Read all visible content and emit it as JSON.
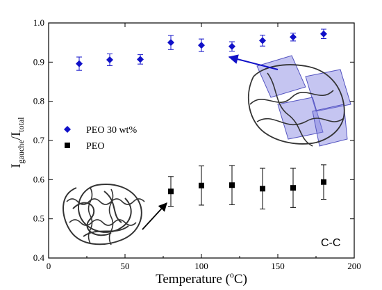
{
  "chart_data": {
    "type": "scatter",
    "xlabel": {
      "main": "Temperature (",
      "sup": "o",
      "end": "C)"
    },
    "ylabel": {
      "i1": "I",
      "sub1": "gauche",
      "slash": "/I",
      "sub2": "total"
    },
    "xlim": [
      0,
      200
    ],
    "ylim": [
      0.4,
      1.0
    ],
    "x_ticks": [
      0,
      50,
      100,
      150,
      200
    ],
    "y_ticks": [
      0.4,
      0.5,
      0.6,
      0.7,
      0.8,
      0.9,
      1.0
    ],
    "grid": false,
    "legend_position": "left",
    "annotation": "C-C",
    "series": [
      {
        "name": "PEO 30 wt%",
        "marker": "diamond",
        "color": "#1010c8",
        "x": [
          20,
          40,
          60,
          80,
          100,
          120,
          140,
          160,
          180
        ],
        "y": [
          0.896,
          0.906,
          0.907,
          0.95,
          0.943,
          0.94,
          0.955,
          0.964,
          0.972
        ],
        "err": [
          0.017,
          0.015,
          0.012,
          0.018,
          0.016,
          0.012,
          0.014,
          0.01,
          0.012
        ]
      },
      {
        "name": "PEO",
        "marker": "square",
        "color": "#000000",
        "x": [
          80,
          100,
          120,
          140,
          160,
          180
        ],
        "y": [
          0.57,
          0.585,
          0.586,
          0.577,
          0.579,
          0.594
        ],
        "err": [
          0.038,
          0.05,
          0.05,
          0.052,
          0.05,
          0.044
        ]
      }
    ]
  }
}
